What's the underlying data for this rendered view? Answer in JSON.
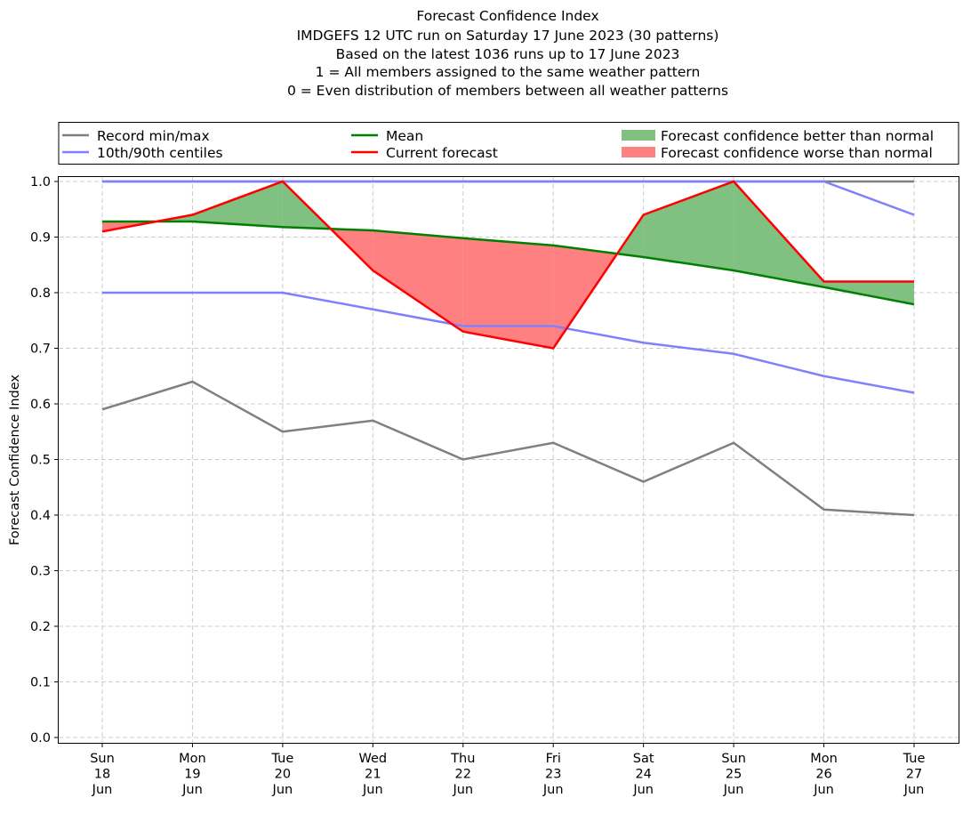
{
  "chart_data": {
    "type": "line",
    "title_lines": [
      "Forecast Confidence Index",
      "IMDGEFS 12 UTC run on Saturday 17 June 2023 (30 patterns)",
      "Based on the latest 1036 runs up to 17 June 2023",
      "1 = All members assigned to the same weather pattern",
      "0 = Even distribution of members between all weather patterns"
    ],
    "xlabel": "",
    "ylabel": "Forecast Confidence Index",
    "ylim": [
      0.0,
      1.0
    ],
    "yticks": [
      "0.0",
      "0.1",
      "0.2",
      "0.3",
      "0.4",
      "0.5",
      "0.6",
      "0.7",
      "0.8",
      "0.9",
      "1.0"
    ],
    "grid": true,
    "legend_placement": "top (above plot, 3 columns)",
    "categories": [
      [
        "Sun",
        "18",
        "Jun"
      ],
      [
        "Mon",
        "19",
        "Jun"
      ],
      [
        "Tue",
        "20",
        "Jun"
      ],
      [
        "Wed",
        "21",
        "Jun"
      ],
      [
        "Thu",
        "22",
        "Jun"
      ],
      [
        "Fri",
        "23",
        "Jun"
      ],
      [
        "Sat",
        "24",
        "Jun"
      ],
      [
        "Sun",
        "25",
        "Jun"
      ],
      [
        "Mon",
        "26",
        "Jun"
      ],
      [
        "Tue",
        "27",
        "Jun"
      ]
    ],
    "series": [
      {
        "name": "Record max",
        "legend_group": "Record min/max",
        "color": "#808080",
        "values": [
          1.0,
          1.0,
          1.0,
          1.0,
          1.0,
          1.0,
          1.0,
          1.0,
          1.0,
          1.0
        ]
      },
      {
        "name": "Record min",
        "legend_group": "Record min/max",
        "color": "#808080",
        "values": [
          0.59,
          0.64,
          0.55,
          0.57,
          0.5,
          0.53,
          0.46,
          0.53,
          0.41,
          0.4
        ]
      },
      {
        "name": "90th centile",
        "legend_group": "10th/90th centiles",
        "color": "#8080ff",
        "values": [
          1.0,
          1.0,
          1.0,
          1.0,
          1.0,
          1.0,
          1.0,
          1.0,
          1.0,
          0.94
        ]
      },
      {
        "name": "10th centile",
        "legend_group": "10th/90th centiles",
        "color": "#8080ff",
        "values": [
          0.8,
          0.8,
          0.8,
          0.77,
          0.74,
          0.74,
          0.71,
          0.69,
          0.65,
          0.62
        ]
      },
      {
        "name": "Mean",
        "color": "#008000",
        "values": [
          0.928,
          0.928,
          0.918,
          0.912,
          0.898,
          0.885,
          0.864,
          0.84,
          0.81,
          0.779
        ]
      },
      {
        "name": "Current forecast",
        "color": "#ff0000",
        "values": [
          0.91,
          0.94,
          1.0,
          0.84,
          0.73,
          0.7,
          0.94,
          1.0,
          0.82,
          0.82
        ]
      }
    ],
    "fills": [
      {
        "name": "Forecast confidence better than normal",
        "between": [
          "Current forecast",
          "Mean"
        ],
        "where": "forecast > mean",
        "color": "#80c080"
      },
      {
        "name": "Forecast confidence worse than normal",
        "between": [
          "Current forecast",
          "Mean"
        ],
        "where": "forecast < mean",
        "color": "#ff8080"
      }
    ],
    "legend": [
      {
        "label": "Record min/max",
        "kind": "line",
        "color": "#808080"
      },
      {
        "label": "10th/90th centiles",
        "kind": "line",
        "color": "#8080ff"
      },
      {
        "label": "Mean",
        "kind": "line",
        "color": "#008000"
      },
      {
        "label": "Current forecast",
        "kind": "line",
        "color": "#ff0000"
      },
      {
        "label": "Forecast confidence better than normal",
        "kind": "patch",
        "color": "#80c080"
      },
      {
        "label": "Forecast confidence worse than normal",
        "kind": "patch",
        "color": "#ff8080"
      }
    ]
  }
}
